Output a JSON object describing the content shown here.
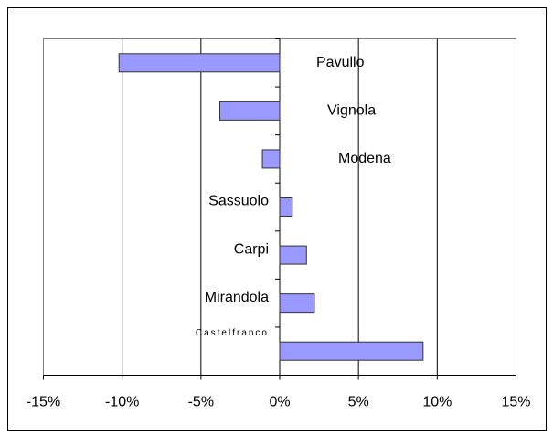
{
  "chart_data": {
    "type": "bar",
    "orientation": "horizontal",
    "categories": [
      "Pavullo",
      "Vignola",
      "Modena",
      "Sassuolo",
      "Carpi",
      "Mirandola",
      "Castelfranco"
    ],
    "values": [
      -10.2,
      -3.8,
      -1.1,
      0.8,
      1.7,
      2.2,
      9.1
    ],
    "color": "#9999ff",
    "xlim": [
      -15,
      15
    ],
    "xticks": [
      {
        "value": -15,
        "label": "-15%"
      },
      {
        "value": -10,
        "label": "-10%"
      },
      {
        "value": -5,
        "label": "-5%"
      },
      {
        "value": 0,
        "label": "0%"
      },
      {
        "value": 5,
        "label": "5%"
      },
      {
        "value": 10,
        "label": "10%"
      },
      {
        "value": 15,
        "label": "15%"
      }
    ],
    "grid": true
  }
}
